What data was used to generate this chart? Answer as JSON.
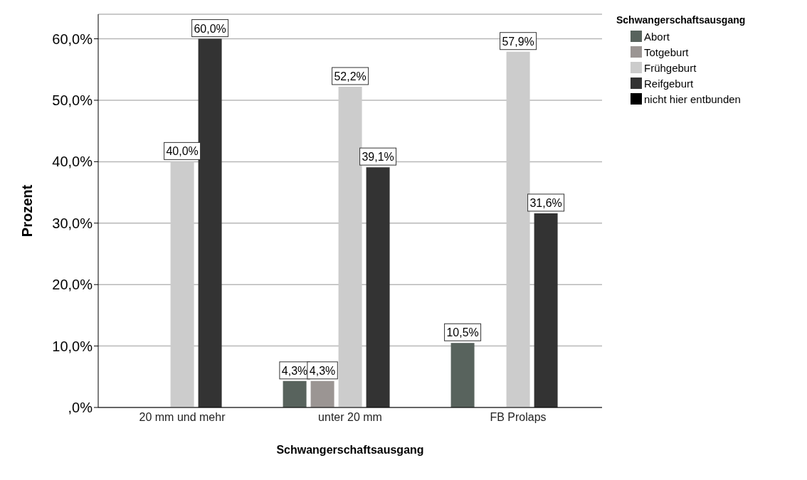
{
  "chart_data": {
    "type": "bar",
    "xlabel": "Schwangerschaftsausgang",
    "ylabel": "Prozent",
    "legend_title": "Schwangerschaftsausgang",
    "categories": [
      "20 mm und mehr",
      "unter 20 mm",
      "FB Prolaps"
    ],
    "series": [
      {
        "name": "Abort",
        "color": "#58635d",
        "values": [
          null,
          4.3,
          10.5
        ],
        "value_labels": [
          null,
          "4,3%",
          "10,5%"
        ]
      },
      {
        "name": "Totgeburt",
        "color": "#9b9593",
        "values": [
          null,
          4.3,
          null
        ],
        "value_labels": [
          null,
          "4,3%",
          null
        ]
      },
      {
        "name": "Frühgeburt",
        "color": "#cccccc",
        "values": [
          40.0,
          52.2,
          57.9
        ],
        "value_labels": [
          "40,0%",
          "52,2%",
          "57,9%"
        ]
      },
      {
        "name": "Reifgeburt",
        "color": "#333333",
        "values": [
          60.0,
          39.1,
          31.6
        ],
        "value_labels": [
          "60,0%",
          "39,1%",
          "31,6%"
        ]
      },
      {
        "name": "nicht hier entbunden",
        "color": "#000000",
        "values": [
          null,
          null,
          null
        ],
        "value_labels": [
          null,
          null,
          null
        ]
      }
    ],
    "ylim": [
      0,
      64
    ],
    "yticks": [
      {
        "value": 0,
        "label": ",0%"
      },
      {
        "value": 10,
        "label": "10,0%"
      },
      {
        "value": 20,
        "label": "20,0%"
      },
      {
        "value": 30,
        "label": "30,0%"
      },
      {
        "value": 40,
        "label": "40,0%"
      },
      {
        "value": 50,
        "label": "50,0%"
      },
      {
        "value": 60,
        "label": "60,0%"
      }
    ],
    "grid": "y",
    "legend": "top right"
  }
}
